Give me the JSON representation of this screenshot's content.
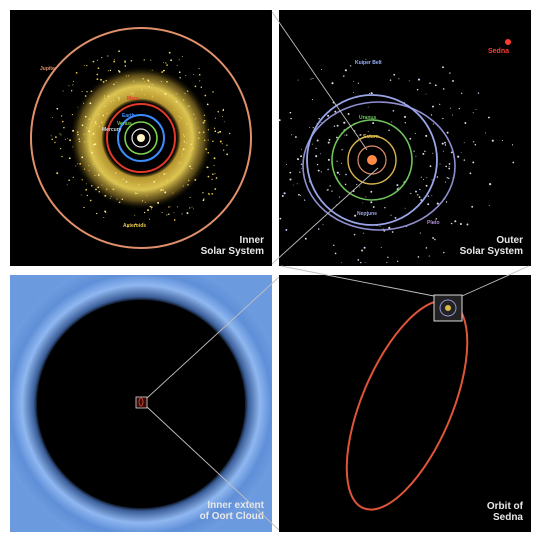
{
  "panels": {
    "inner_solar": {
      "label_line1": "Inner",
      "label_line2": "Solar System",
      "orbits": {
        "jupiter": "Jupiter",
        "asteroids": "Asteroids",
        "mars": "Mars",
        "earth": "Earth",
        "venus": "Venus",
        "mercury": "Mercury"
      }
    },
    "outer_solar": {
      "label_line1": "Outer",
      "label_line2": "Solar System",
      "orbits": {
        "kuiper": "Kuiper Belt",
        "uranus": "Uranus",
        "saturn": "Saturn",
        "neptune": "Neptune",
        "pluto": "Pluto"
      },
      "sedna": "Sedna"
    },
    "oort": {
      "label_line1": "Inner extent",
      "label_line2": "of Oort Cloud"
    },
    "sedna_orbit": {
      "label_line1": "Orbit of",
      "label_line2": "Sedna"
    }
  },
  "colors": {
    "jupiter_orbit": "#e0906a",
    "asteroids": "#e6c84a",
    "mars_orbit": "#e23a2a",
    "earth_orbit": "#3b8cff",
    "venus_orbit": "#7ad14a",
    "sedna": "#ff3b2f",
    "oort_cloud": "#6f9de0"
  }
}
